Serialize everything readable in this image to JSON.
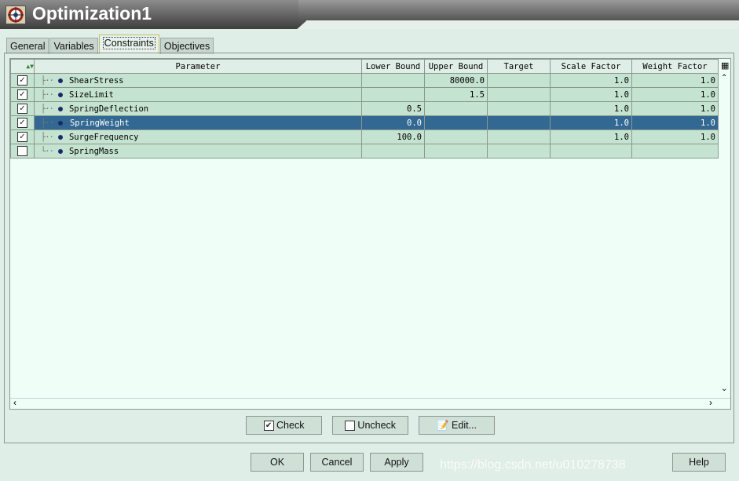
{
  "window": {
    "title": "Optimization1",
    "icon": "target-icon"
  },
  "tabs": [
    {
      "label": "General"
    },
    {
      "label": "Variables"
    },
    {
      "label": "Constraints",
      "active": true
    },
    {
      "label": "Objectives"
    }
  ],
  "table": {
    "columns": [
      "Parameter",
      "Lower Bound",
      "Upper Bound",
      "Target",
      "Scale Factor",
      "Weight Factor"
    ],
    "rows": [
      {
        "checked": true,
        "name": "ShearStress",
        "lower": "",
        "upper": "80000.0",
        "target": "",
        "scale": "1.0",
        "weight": "1.0"
      },
      {
        "checked": true,
        "name": "SizeLimit",
        "lower": "",
        "upper": "1.5",
        "target": "",
        "scale": "1.0",
        "weight": "1.0"
      },
      {
        "checked": true,
        "name": "SpringDeflection",
        "lower": "0.5",
        "upper": "",
        "target": "",
        "scale": "1.0",
        "weight": "1.0"
      },
      {
        "checked": true,
        "name": "SpringWeight",
        "lower": "0.0",
        "upper": "",
        "target": "",
        "scale": "1.0",
        "weight": "1.0",
        "selected": true
      },
      {
        "checked": true,
        "name": "SurgeFrequency",
        "lower": "100.0",
        "upper": "",
        "target": "",
        "scale": "1.0",
        "weight": "1.0"
      },
      {
        "checked": false,
        "name": "SpringMass",
        "lower": "",
        "upper": "",
        "target": "",
        "scale": "",
        "weight": ""
      }
    ]
  },
  "buttons": {
    "check": "Check",
    "uncheck": "Uncheck",
    "edit": "Edit...",
    "ok": "OK",
    "cancel": "Cancel",
    "apply": "Apply",
    "help": "Help"
  },
  "watermark": "https://blog.csdn.net/u010278738",
  "colors": {
    "selection": "#326891",
    "row": "#c5e3d1"
  }
}
